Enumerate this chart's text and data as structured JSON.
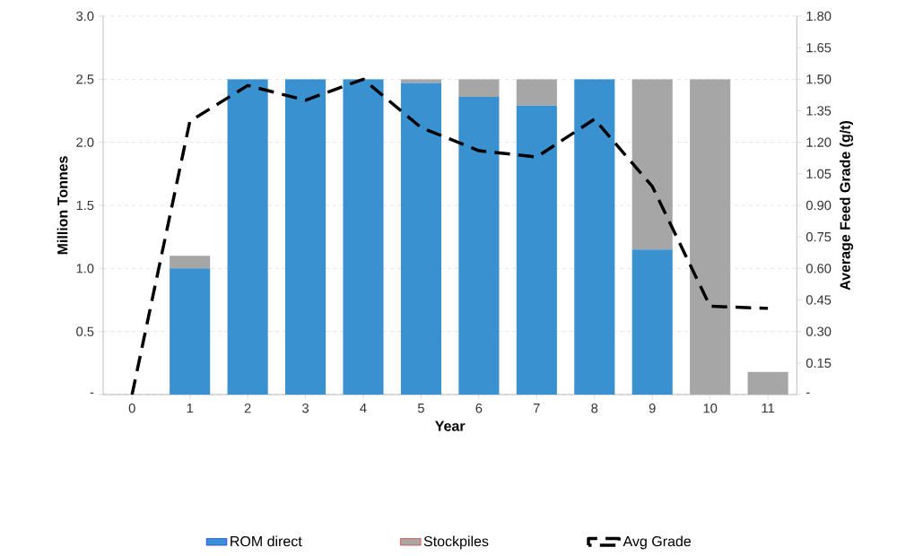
{
  "chart_data": {
    "type": "bar",
    "stacked": true,
    "xlabel": "Year",
    "ylabel": "Million Tonnes",
    "y2label": "Average Feed Grade (g/t)",
    "categories": [
      "0",
      "1",
      "2",
      "3",
      "4",
      "5",
      "6",
      "7",
      "8",
      "9",
      "10",
      "11"
    ],
    "series": [
      {
        "name": "ROM direct",
        "color": "#3a91d0",
        "values": [
          0,
          1.0,
          2.5,
          2.5,
          2.5,
          2.47,
          2.36,
          2.29,
          2.5,
          1.15,
          0,
          0
        ]
      },
      {
        "name": "Stockpiles",
        "color": "#a6a6a6",
        "values": [
          0,
          0.1,
          0,
          0,
          0,
          0.03,
          0.14,
          0.21,
          0,
          1.35,
          2.5,
          0.18
        ]
      },
      {
        "name": "Avg Grade",
        "type": "line",
        "axis": "y2",
        "color": "#000000",
        "line_style": "dashed",
        "values": [
          0,
          1.3,
          1.47,
          1.4,
          1.5,
          1.27,
          1.16,
          1.13,
          1.31,
          0.99,
          0.42,
          0.41
        ]
      }
    ],
    "ylim": [
      0,
      3
    ],
    "yticks": [
      {
        "value": 0,
        "label": "-"
      },
      {
        "value": 0.5,
        "label": "0.5"
      },
      {
        "value": 1,
        "label": "1.0"
      },
      {
        "value": 1.5,
        "label": "1.5"
      },
      {
        "value": 2,
        "label": "2.0"
      },
      {
        "value": 2.5,
        "label": "2.5"
      },
      {
        "value": 3,
        "label": "3.0"
      }
    ],
    "y2lim": [
      0,
      1.8
    ],
    "y2ticks": [
      {
        "value": 0,
        "label": "-"
      },
      {
        "value": 0.15,
        "label": "0.15"
      },
      {
        "value": 0.3,
        "label": "0.30"
      },
      {
        "value": 0.45,
        "label": "0.45"
      },
      {
        "value": 0.6,
        "label": "0.60"
      },
      {
        "value": 0.75,
        "label": "0.75"
      },
      {
        "value": 0.9,
        "label": "0.90"
      },
      {
        "value": 1.05,
        "label": "1.05"
      },
      {
        "value": 1.2,
        "label": "1.20"
      },
      {
        "value": 1.35,
        "label": "1.35"
      },
      {
        "value": 1.5,
        "label": "1.50"
      },
      {
        "value": 1.65,
        "label": "1.65"
      },
      {
        "value": 1.8,
        "label": "1.80"
      }
    ],
    "grid": "y",
    "legend": "bottom"
  }
}
